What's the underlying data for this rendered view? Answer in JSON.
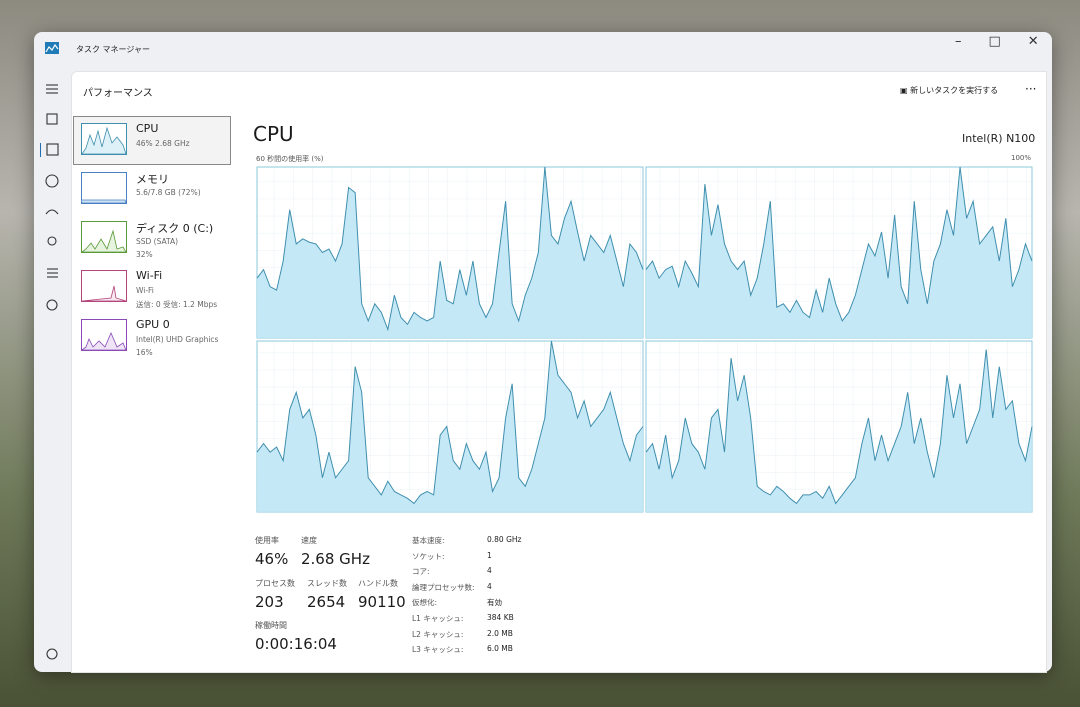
{
  "window": {
    "title": "タスク マネージャー"
  },
  "header": {
    "title": "パフォーマンス",
    "run_task": "新しいタスクを実行する"
  },
  "sidebar": [
    {
      "name": "CPU",
      "detail": "46% 2.68 GHz"
    },
    {
      "name": "メモリ",
      "detail": "5.6/7.8 GB (72%)"
    },
    {
      "name": "ディスク 0 (C:)",
      "detail": "SSD (SATA)",
      "detail2": "32%"
    },
    {
      "name": "Wi-Fi",
      "detail": "Wi-Fi",
      "detail2": "送信: 0 受信: 1.2 Mbps"
    },
    {
      "name": "GPU 0",
      "detail": "Intel(R) UHD Graphics",
      "detail2": "16%"
    }
  ],
  "main": {
    "title": "CPU",
    "model": "Intel(R) N100",
    "graph_label": "60 秒間の使用率 (%)",
    "graph_max": "100%"
  },
  "chart_data": {
    "type": "area",
    "ylim": [
      0,
      100
    ],
    "color": "#bfe6f5",
    "line_color": "#3f8fae",
    "cores": [
      {
        "values": [
          35,
          40,
          30,
          28,
          45,
          75,
          55,
          58,
          56,
          55,
          50,
          52,
          45,
          55,
          88,
          85,
          20,
          10,
          20,
          15,
          5,
          25,
          12,
          8,
          15,
          12,
          10,
          12,
          45,
          22,
          20,
          40,
          25,
          45,
          20,
          12,
          20,
          50,
          80,
          20,
          10,
          25,
          35,
          50,
          100,
          60,
          55,
          70,
          80,
          62,
          45,
          60,
          55,
          50,
          60,
          45,
          30,
          55,
          50,
          40
        ]
      },
      {
        "values": [
          40,
          45,
          35,
          40,
          42,
          30,
          45,
          38,
          30,
          90,
          60,
          78,
          55,
          45,
          40,
          45,
          25,
          35,
          55,
          80,
          18,
          20,
          15,
          22,
          15,
          12,
          28,
          15,
          35,
          20,
          10,
          15,
          25,
          40,
          55,
          48,
          62,
          35,
          72,
          30,
          20,
          80,
          40,
          20,
          45,
          55,
          75,
          60,
          100,
          70,
          80,
          55,
          60,
          65,
          45,
          70,
          30,
          40,
          55,
          45
        ]
      },
      {
        "values": [
          35,
          40,
          35,
          38,
          30,
          60,
          70,
          55,
          60,
          45,
          20,
          35,
          20,
          25,
          30,
          85,
          70,
          20,
          15,
          10,
          18,
          12,
          10,
          8,
          5,
          10,
          12,
          10,
          45,
          50,
          30,
          25,
          40,
          30,
          25,
          35,
          12,
          20,
          55,
          75,
          20,
          15,
          25,
          40,
          55,
          100,
          80,
          75,
          70,
          55,
          65,
          50,
          55,
          60,
          70,
          55,
          40,
          30,
          45,
          50
        ]
      },
      {
        "values": [
          35,
          40,
          25,
          45,
          20,
          30,
          55,
          40,
          35,
          25,
          55,
          60,
          35,
          90,
          65,
          80,
          55,
          15,
          12,
          10,
          15,
          12,
          8,
          5,
          10,
          10,
          12,
          8,
          15,
          5,
          10,
          15,
          20,
          40,
          55,
          30,
          45,
          30,
          40,
          50,
          70,
          40,
          55,
          35,
          20,
          40,
          80,
          55,
          75,
          40,
          50,
          60,
          95,
          55,
          85,
          60,
          65,
          40,
          30,
          50
        ]
      }
    ]
  },
  "stats": {
    "primary": [
      {
        "label": "使用率",
        "value": "46%"
      },
      {
        "label": "速度",
        "value": "2.68 GHz"
      },
      {
        "label": "プロセス数",
        "value": "203"
      },
      {
        "label": "スレッド数",
        "value": "2654"
      },
      {
        "label": "ハンドル数",
        "value": "90110"
      },
      {
        "label": "稼働時間",
        "value": "0:00:16:04"
      }
    ],
    "details": [
      {
        "label": "基本速度:",
        "value": "0.80 GHz"
      },
      {
        "label": "ソケット:",
        "value": "1"
      },
      {
        "label": "コア:",
        "value": "4"
      },
      {
        "label": "論理プロセッサ数:",
        "value": "4"
      },
      {
        "label": "仮想化:",
        "value": "有効"
      },
      {
        "label": "L1 キャッシュ:",
        "value": "384 KB"
      },
      {
        "label": "L2 キャッシュ:",
        "value": "2.0 MB"
      },
      {
        "label": "L3 キャッシュ:",
        "value": "6.0 MB"
      }
    ]
  }
}
